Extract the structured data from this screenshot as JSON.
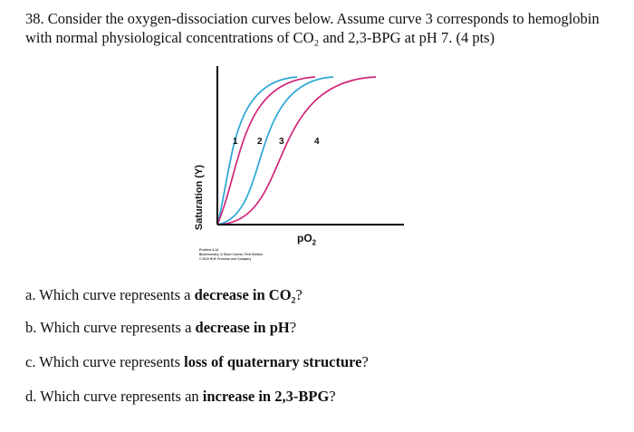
{
  "question": {
    "text": "38. Consider the oxygen-dissociation curves below.  Assume curve 3 corresponds to hemoglobin with normal physiological concentrations of CO₂ and 2,3-BPG at pH 7. (4 pts)"
  },
  "figure": {
    "y_axis_label": "Saturation (Y)",
    "x_axis_label": "pO",
    "x_axis_subscript": "2",
    "curve_labels": [
      "1",
      "2",
      "3",
      "4"
    ],
    "credit_lines": [
      "Problem 4-14",
      "Biochemistry: A Short Course, First Edition",
      "© 2010 W.H. Freeman and Company"
    ],
    "colors": {
      "teal_curve": "#2ba6d6",
      "magenta_curve": "#d1267a",
      "axis": "#000000"
    }
  },
  "subquestions": [
    {
      "prefix": "a. Which curve represents a ",
      "bold": "decrease in CO₂",
      "suffix": "?"
    },
    {
      "prefix": "b. Which curve represents a ",
      "bold": "decrease in pH",
      "suffix": "?"
    },
    {
      "prefix": "c. Which curve represents ",
      "bold": "loss of quaternary structure",
      "suffix": "?"
    },
    {
      "prefix": "d. Which curve represents an ",
      "bold": "increase in 2,3-BPG",
      "suffix": "?"
    }
  ]
}
